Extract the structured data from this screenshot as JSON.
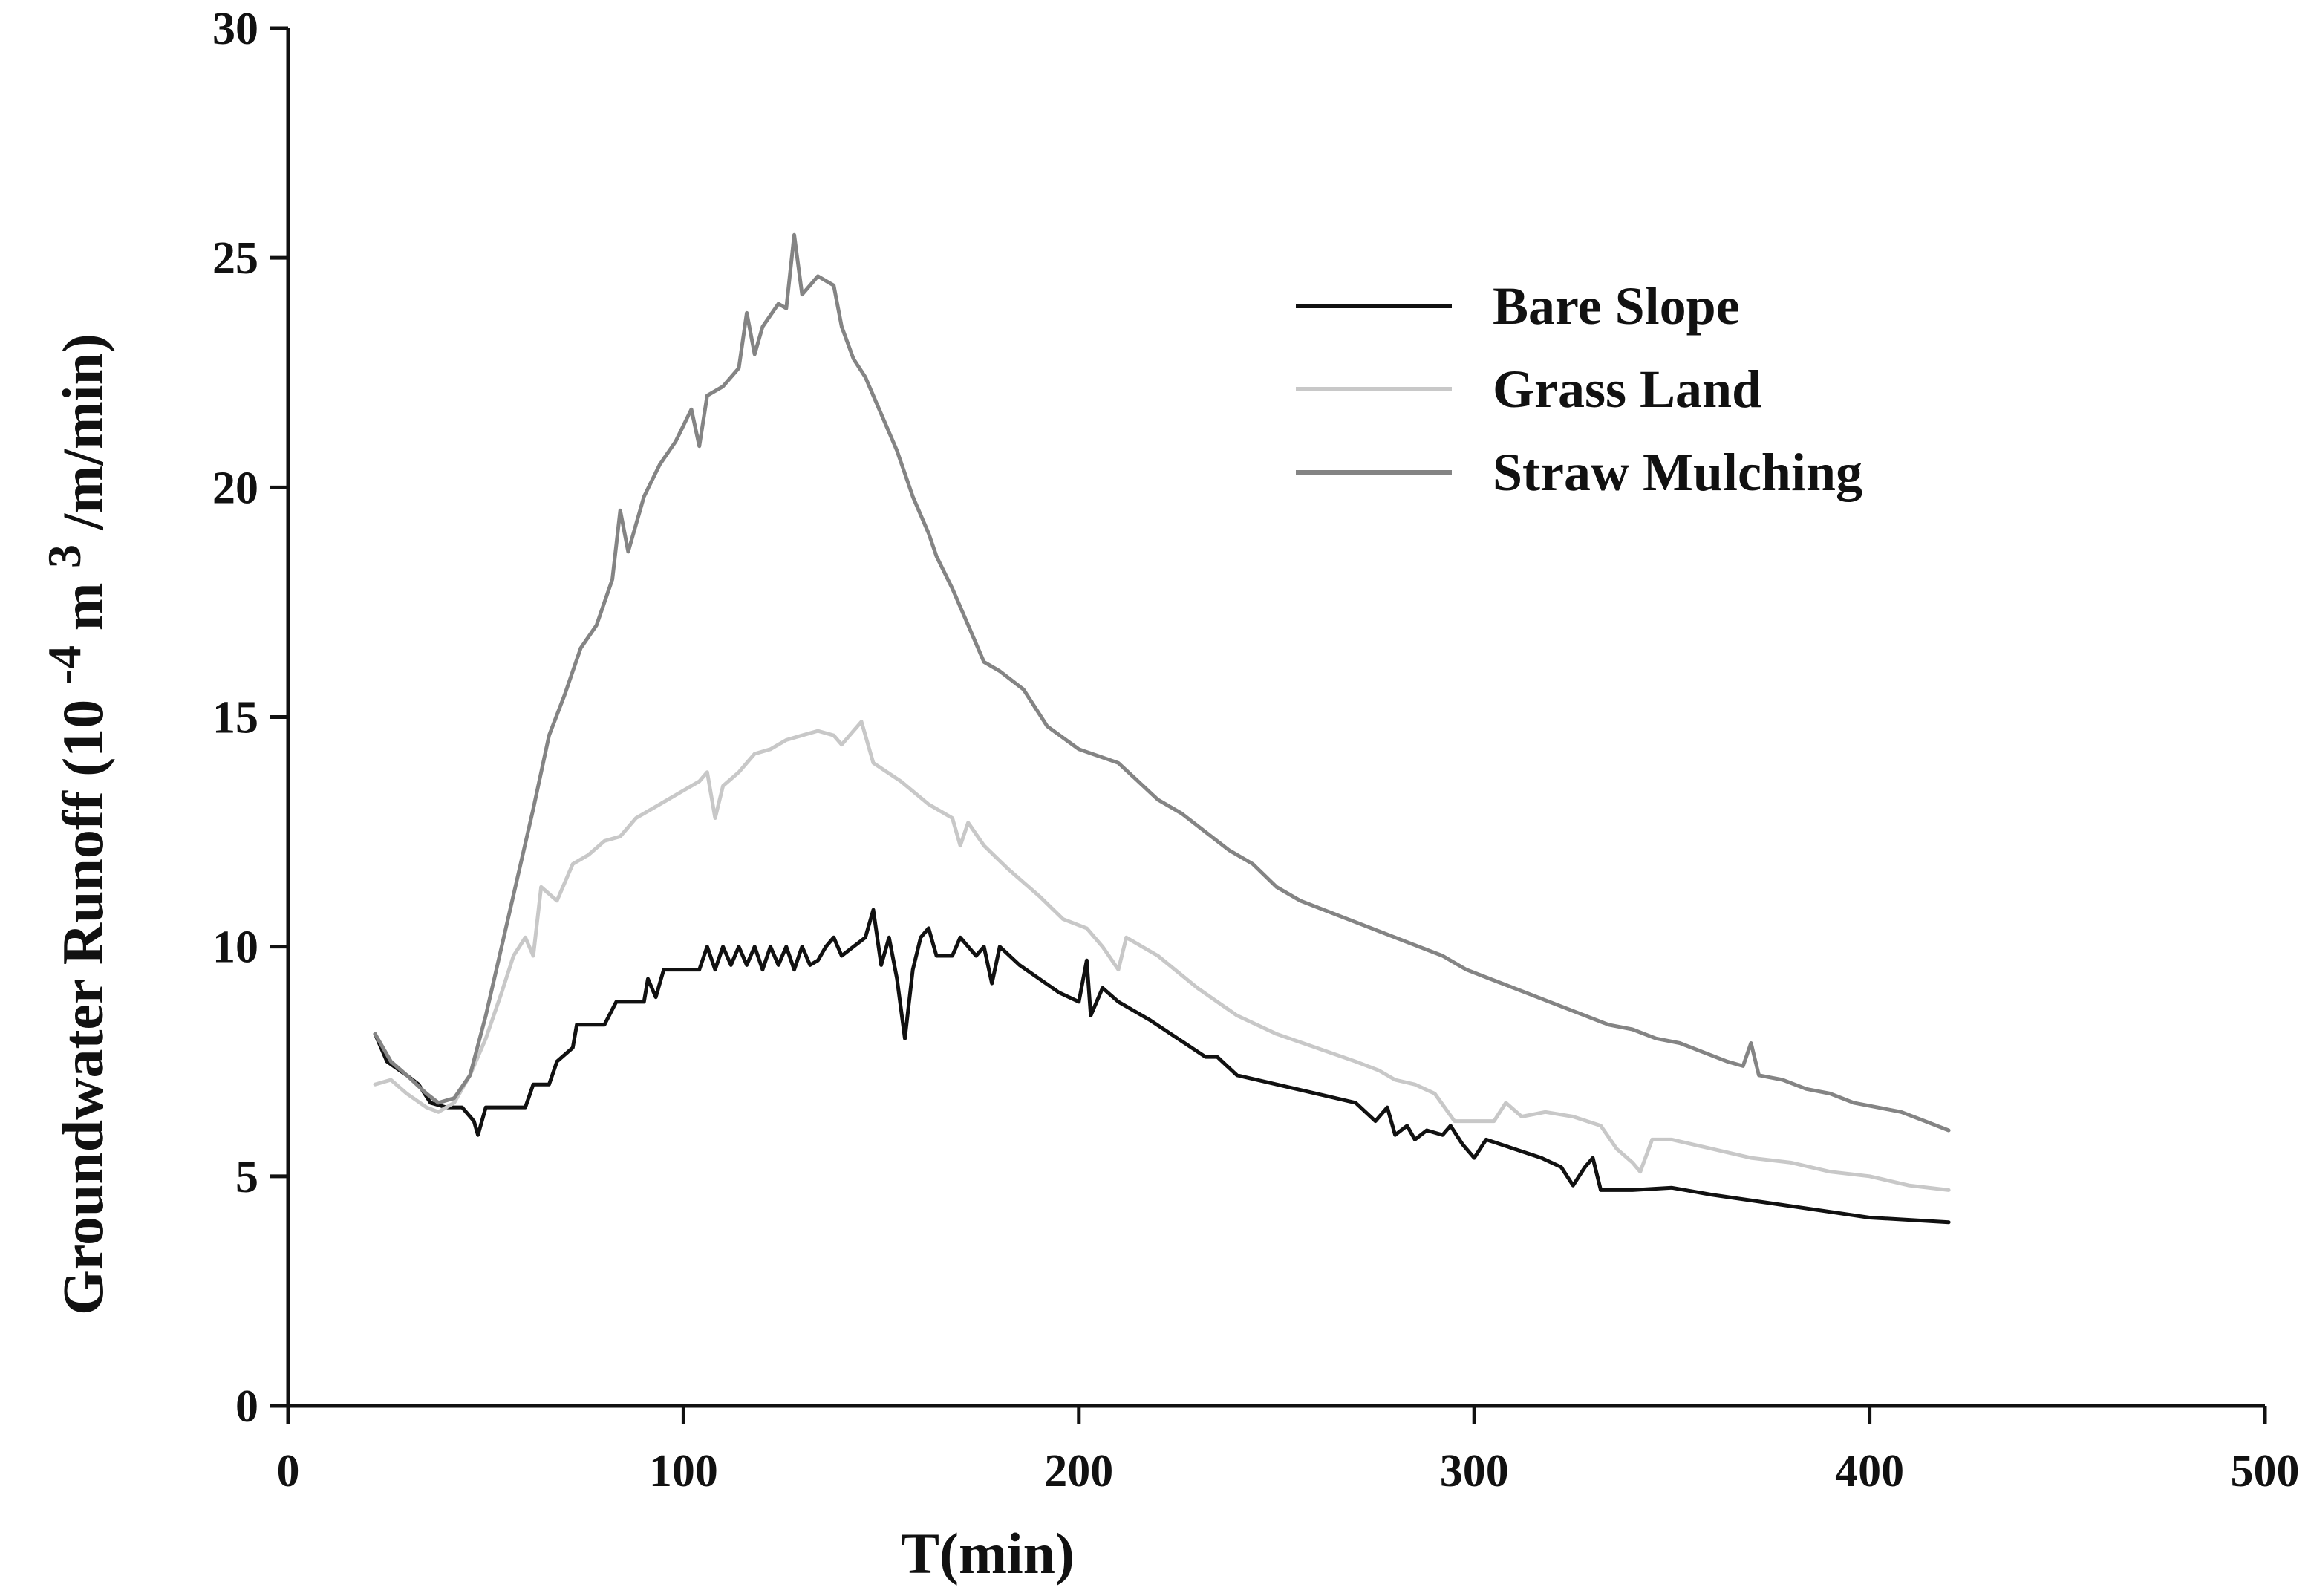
{
  "chart_data": {
    "type": "line",
    "title": "",
    "xlabel": "T(min)",
    "ylabel_parts": {
      "prefix": "Groundwater Runoff (10",
      "exp1": "-4",
      "mid": "m",
      "exp2": "3",
      "suffix": "/m/min)"
    },
    "xlim": [
      0,
      500
    ],
    "ylim": [
      0,
      30
    ],
    "xticks": [
      0,
      100,
      200,
      300,
      400,
      500
    ],
    "yticks": [
      0,
      5,
      10,
      15,
      20,
      25,
      30
    ],
    "legend_position": "upper-right-inside",
    "series": [
      {
        "name": "Bare Slope",
        "color": "#111111",
        "points": [
          [
            22,
            8.1
          ],
          [
            25,
            7.5
          ],
          [
            30,
            7.2
          ],
          [
            33,
            7.0
          ],
          [
            36,
            6.6
          ],
          [
            40,
            6.5
          ],
          [
            44,
            6.5
          ],
          [
            47,
            6.2
          ],
          [
            48,
            5.9
          ],
          [
            50,
            6.5
          ],
          [
            55,
            6.5
          ],
          [
            60,
            6.5
          ],
          [
            62,
            7.0
          ],
          [
            66,
            7.0
          ],
          [
            68,
            7.5
          ],
          [
            72,
            7.8
          ],
          [
            73,
            8.3
          ],
          [
            80,
            8.3
          ],
          [
            83,
            8.8
          ],
          [
            90,
            8.8
          ],
          [
            91,
            9.3
          ],
          [
            93,
            8.9
          ],
          [
            95,
            9.5
          ],
          [
            104,
            9.5
          ],
          [
            106,
            10.0
          ],
          [
            108,
            9.5
          ],
          [
            110,
            10.0
          ],
          [
            112,
            9.6
          ],
          [
            114,
            10.0
          ],
          [
            116,
            9.6
          ],
          [
            118,
            10.0
          ],
          [
            120,
            9.5
          ],
          [
            122,
            10.0
          ],
          [
            124,
            9.6
          ],
          [
            126,
            10.0
          ],
          [
            128,
            9.5
          ],
          [
            130,
            10.0
          ],
          [
            132,
            9.6
          ],
          [
            134,
            9.7
          ],
          [
            136,
            10.0
          ],
          [
            138,
            10.2
          ],
          [
            140,
            9.8
          ],
          [
            143,
            10.0
          ],
          [
            146,
            10.2
          ],
          [
            148,
            10.8
          ],
          [
            150,
            9.6
          ],
          [
            152,
            10.2
          ],
          [
            154,
            9.3
          ],
          [
            156,
            8.0
          ],
          [
            158,
            9.5
          ],
          [
            160,
            10.2
          ],
          [
            162,
            10.4
          ],
          [
            164,
            9.8
          ],
          [
            168,
            9.8
          ],
          [
            170,
            10.2
          ],
          [
            174,
            9.8
          ],
          [
            176,
            10.0
          ],
          [
            178,
            9.2
          ],
          [
            180,
            10.0
          ],
          [
            185,
            9.6
          ],
          [
            190,
            9.3
          ],
          [
            195,
            9.0
          ],
          [
            200,
            8.8
          ],
          [
            202,
            9.7
          ],
          [
            203,
            8.5
          ],
          [
            206,
            9.1
          ],
          [
            210,
            8.8
          ],
          [
            218,
            8.4
          ],
          [
            225,
            8.0
          ],
          [
            232,
            7.6
          ],
          [
            235,
            7.6
          ],
          [
            240,
            7.2
          ],
          [
            255,
            6.9
          ],
          [
            270,
            6.6
          ],
          [
            275,
            6.2
          ],
          [
            278,
            6.5
          ],
          [
            280,
            5.9
          ],
          [
            283,
            6.1
          ],
          [
            285,
            5.8
          ],
          [
            288,
            6.0
          ],
          [
            292,
            5.9
          ],
          [
            294,
            6.1
          ],
          [
            297,
            5.7
          ],
          [
            300,
            5.4
          ],
          [
            303,
            5.8
          ],
          [
            310,
            5.6
          ],
          [
            317,
            5.4
          ],
          [
            322,
            5.2
          ],
          [
            325,
            4.8
          ],
          [
            328,
            5.2
          ],
          [
            330,
            5.4
          ],
          [
            332,
            4.7
          ],
          [
            340,
            4.7
          ],
          [
            350,
            4.75
          ],
          [
            360,
            4.6
          ],
          [
            380,
            4.35
          ],
          [
            400,
            4.1
          ],
          [
            420,
            4.0
          ]
        ]
      },
      {
        "name": "Grass Land",
        "color": "#c8c8c8",
        "points": [
          [
            22,
            7.0
          ],
          [
            26,
            7.1
          ],
          [
            30,
            6.8
          ],
          [
            35,
            6.5
          ],
          [
            38,
            6.4
          ],
          [
            42,
            6.6
          ],
          [
            46,
            7.2
          ],
          [
            50,
            8.0
          ],
          [
            54,
            9.0
          ],
          [
            57,
            9.8
          ],
          [
            60,
            10.2
          ],
          [
            62,
            9.8
          ],
          [
            64,
            11.3
          ],
          [
            68,
            11.0
          ],
          [
            72,
            11.8
          ],
          [
            76,
            12.0
          ],
          [
            80,
            12.3
          ],
          [
            84,
            12.4
          ],
          [
            88,
            12.8
          ],
          [
            92,
            13.0
          ],
          [
            96,
            13.2
          ],
          [
            100,
            13.4
          ],
          [
            104,
            13.6
          ],
          [
            106,
            13.8
          ],
          [
            108,
            12.8
          ],
          [
            110,
            13.5
          ],
          [
            114,
            13.8
          ],
          [
            118,
            14.2
          ],
          [
            122,
            14.3
          ],
          [
            126,
            14.5
          ],
          [
            130,
            14.6
          ],
          [
            134,
            14.7
          ],
          [
            138,
            14.6
          ],
          [
            140,
            14.4
          ],
          [
            145,
            14.9
          ],
          [
            148,
            14.0
          ],
          [
            155,
            13.6
          ],
          [
            162,
            13.1
          ],
          [
            168,
            12.8
          ],
          [
            170,
            12.2
          ],
          [
            172,
            12.7
          ],
          [
            176,
            12.2
          ],
          [
            182,
            11.7
          ],
          [
            190,
            11.1
          ],
          [
            196,
            10.6
          ],
          [
            202,
            10.4
          ],
          [
            206,
            10.0
          ],
          [
            210,
            9.5
          ],
          [
            212,
            10.2
          ],
          [
            220,
            9.8
          ],
          [
            230,
            9.1
          ],
          [
            240,
            8.5
          ],
          [
            250,
            8.1
          ],
          [
            260,
            7.8
          ],
          [
            270,
            7.5
          ],
          [
            276,
            7.3
          ],
          [
            280,
            7.1
          ],
          [
            285,
            7.0
          ],
          [
            290,
            6.8
          ],
          [
            295,
            6.2
          ],
          [
            300,
            6.2
          ],
          [
            305,
            6.2
          ],
          [
            308,
            6.6
          ],
          [
            312,
            6.3
          ],
          [
            318,
            6.4
          ],
          [
            325,
            6.3
          ],
          [
            332,
            6.1
          ],
          [
            336,
            5.6
          ],
          [
            340,
            5.3
          ],
          [
            342,
            5.1
          ],
          [
            345,
            5.8
          ],
          [
            350,
            5.8
          ],
          [
            360,
            5.6
          ],
          [
            370,
            5.4
          ],
          [
            380,
            5.3
          ],
          [
            390,
            5.1
          ],
          [
            400,
            5.0
          ],
          [
            410,
            4.8
          ],
          [
            420,
            4.7
          ]
        ]
      },
      {
        "name": "Straw Mulching",
        "color": "#848484",
        "points": [
          [
            22,
            8.1
          ],
          [
            26,
            7.5
          ],
          [
            30,
            7.2
          ],
          [
            35,
            6.8
          ],
          [
            38,
            6.6
          ],
          [
            42,
            6.7
          ],
          [
            46,
            7.2
          ],
          [
            50,
            8.5
          ],
          [
            54,
            10.0
          ],
          [
            58,
            11.5
          ],
          [
            62,
            13.0
          ],
          [
            66,
            14.6
          ],
          [
            70,
            15.5
          ],
          [
            74,
            16.5
          ],
          [
            78,
            17.0
          ],
          [
            82,
            18.0
          ],
          [
            84,
            19.5
          ],
          [
            86,
            18.6
          ],
          [
            90,
            19.8
          ],
          [
            94,
            20.5
          ],
          [
            98,
            21.0
          ],
          [
            102,
            21.7
          ],
          [
            104,
            20.9
          ],
          [
            106,
            22.0
          ],
          [
            110,
            22.2
          ],
          [
            114,
            22.6
          ],
          [
            116,
            23.8
          ],
          [
            118,
            22.9
          ],
          [
            120,
            23.5
          ],
          [
            124,
            24.0
          ],
          [
            126,
            23.9
          ],
          [
            128,
            25.5
          ],
          [
            130,
            24.2
          ],
          [
            134,
            24.6
          ],
          [
            138,
            24.4
          ],
          [
            140,
            23.5
          ],
          [
            143,
            22.8
          ],
          [
            146,
            22.4
          ],
          [
            150,
            21.6
          ],
          [
            154,
            20.8
          ],
          [
            158,
            19.8
          ],
          [
            162,
            19.0
          ],
          [
            164,
            18.5
          ],
          [
            168,
            17.8
          ],
          [
            172,
            17.0
          ],
          [
            176,
            16.2
          ],
          [
            180,
            16.0
          ],
          [
            186,
            15.6
          ],
          [
            192,
            14.8
          ],
          [
            200,
            14.3
          ],
          [
            210,
            14.0
          ],
          [
            220,
            13.2
          ],
          [
            226,
            12.9
          ],
          [
            232,
            12.5
          ],
          [
            238,
            12.1
          ],
          [
            244,
            11.8
          ],
          [
            250,
            11.3
          ],
          [
            256,
            11.0
          ],
          [
            262,
            10.8
          ],
          [
            268,
            10.6
          ],
          [
            274,
            10.4
          ],
          [
            280,
            10.2
          ],
          [
            286,
            10.0
          ],
          [
            292,
            9.8
          ],
          [
            298,
            9.5
          ],
          [
            304,
            9.3
          ],
          [
            310,
            9.1
          ],
          [
            316,
            8.9
          ],
          [
            322,
            8.7
          ],
          [
            328,
            8.5
          ],
          [
            334,
            8.3
          ],
          [
            340,
            8.2
          ],
          [
            346,
            8.0
          ],
          [
            352,
            7.9
          ],
          [
            358,
            7.7
          ],
          [
            364,
            7.5
          ],
          [
            368,
            7.4
          ],
          [
            370,
            7.9
          ],
          [
            372,
            7.2
          ],
          [
            378,
            7.1
          ],
          [
            384,
            6.9
          ],
          [
            390,
            6.8
          ],
          [
            396,
            6.6
          ],
          [
            402,
            6.5
          ],
          [
            408,
            6.4
          ],
          [
            414,
            6.2
          ],
          [
            420,
            6.0
          ]
        ]
      }
    ]
  }
}
